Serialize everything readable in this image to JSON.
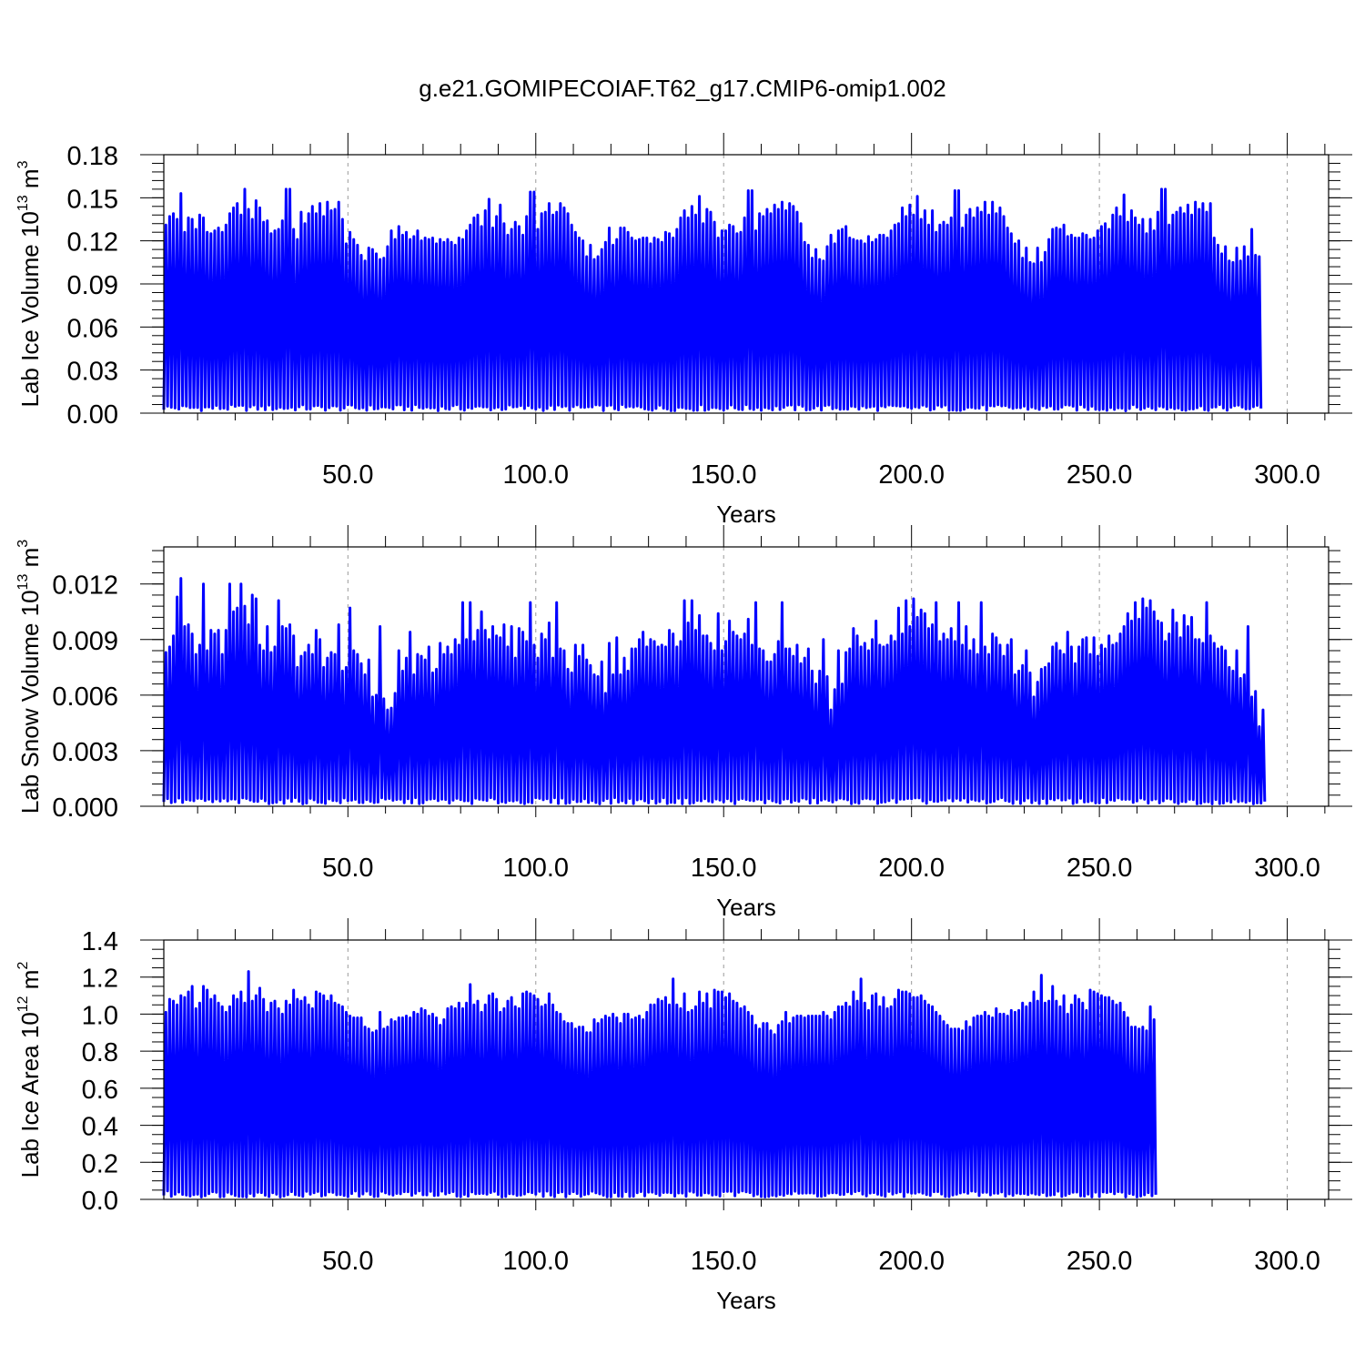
{
  "title": "g.e21.GOMIPECOIAF.T62_g17.CMIP6-omip1.002",
  "series_color": "#0000ff",
  "grid_color": "#9a9a9a",
  "chart_data": [
    {
      "type": "line",
      "name": "ice-volume",
      "ylabel": {
        "main": "Lab Ice Volume 10",
        "exp": "13",
        "unit": " m",
        "unit_exp": "3"
      },
      "xlabel": "Years",
      "xlim": [
        1,
        311
      ],
      "ylim": [
        0,
        0.18
      ],
      "x_ticks": [
        "50.0",
        "100.0",
        "150.0",
        "200.0",
        "250.0",
        "300.0"
      ],
      "x_tick_values": [
        50,
        100,
        150,
        200,
        250,
        300
      ],
      "y_ticks": [
        "0.00",
        "0.03",
        "0.06",
        "0.09",
        "0.12",
        "0.15",
        "0.18"
      ],
      "y_tick_values": [
        0,
        0.03,
        0.06,
        0.09,
        0.12,
        0.15,
        0.18
      ],
      "y_minor_step": 0.006,
      "annual_peaks": [
        0.131,
        0.137,
        0.139,
        0.135,
        0.153,
        0.126,
        0.136,
        0.135,
        0.128,
        0.138,
        0.136,
        0.126,
        0.125,
        0.127,
        0.129,
        0.126,
        0.131,
        0.139,
        0.143,
        0.146,
        0.138,
        0.156,
        0.142,
        0.135,
        0.148,
        0.143,
        0.133,
        0.134,
        0.125,
        0.127,
        0.128,
        0.134,
        0.156,
        0.156,
        0.128,
        0.121,
        0.14,
        0.132,
        0.139,
        0.144,
        0.139,
        0.146,
        0.137,
        0.147,
        0.141,
        0.142,
        0.147,
        0.135,
        0.118,
        0.126,
        0.121,
        0.117,
        0.11,
        0.106,
        0.115,
        0.114,
        0.111,
        0.107,
        0.108,
        0.116,
        0.127,
        0.121,
        0.13,
        0.124,
        0.126,
        0.121,
        0.123,
        0.127,
        0.12,
        0.122,
        0.121,
        0.122,
        0.118,
        0.121,
        0.119,
        0.121,
        0.119,
        0.117,
        0.122,
        0.121,
        0.127,
        0.131,
        0.136,
        0.138,
        0.13,
        0.141,
        0.149,
        0.129,
        0.137,
        0.145,
        0.132,
        0.124,
        0.128,
        0.133,
        0.13,
        0.124,
        0.137,
        0.154,
        0.154,
        0.128,
        0.139,
        0.14,
        0.146,
        0.138,
        0.14,
        0.146,
        0.143,
        0.139,
        0.131,
        0.126,
        0.122,
        0.12,
        0.109,
        0.117,
        0.107,
        0.109,
        0.114,
        0.119,
        0.129,
        0.117,
        0.121,
        0.129,
        0.129,
        0.126,
        0.122,
        0.12,
        0.121,
        0.122,
        0.122,
        0.118,
        0.122,
        0.121,
        0.119,
        0.126,
        0.125,
        0.122,
        0.128,
        0.136,
        0.141,
        0.136,
        0.144,
        0.138,
        0.151,
        0.132,
        0.142,
        0.14,
        0.133,
        0.122,
        0.127,
        0.127,
        0.131,
        0.13,
        0.125,
        0.126,
        0.136,
        0.155,
        0.155,
        0.127,
        0.139,
        0.137,
        0.142,
        0.139,
        0.145,
        0.142,
        0.147,
        0.141,
        0.146,
        0.144,
        0.14,
        0.132,
        0.119,
        0.117,
        0.108,
        0.114,
        0.107,
        0.106,
        0.116,
        0.124,
        0.118,
        0.127,
        0.128,
        0.13,
        0.122,
        0.121,
        0.12,
        0.12,
        0.118,
        0.123,
        0.119,
        0.121,
        0.124,
        0.124,
        0.122,
        0.127,
        0.131,
        0.132,
        0.143,
        0.137,
        0.145,
        0.138,
        0.151,
        0.135,
        0.141,
        0.131,
        0.141,
        0.126,
        0.131,
        0.133,
        0.131,
        0.136,
        0.155,
        0.155,
        0.129,
        0.138,
        0.142,
        0.136,
        0.143,
        0.14,
        0.147,
        0.138,
        0.147,
        0.139,
        0.143,
        0.137,
        0.129,
        0.125,
        0.118,
        0.12,
        0.108,
        0.115,
        0.105,
        0.104,
        0.115,
        0.105,
        0.112,
        0.121,
        0.128,
        0.129,
        0.128,
        0.131,
        0.123,
        0.124,
        0.122,
        0.122,
        0.125,
        0.124,
        0.121,
        0.122,
        0.127,
        0.13,
        0.132,
        0.128,
        0.138,
        0.143,
        0.137,
        0.152,
        0.133,
        0.141,
        0.136,
        0.131,
        0.135,
        0.125,
        0.135,
        0.127,
        0.14,
        0.156,
        0.156,
        0.131,
        0.138,
        0.14,
        0.143,
        0.139,
        0.145,
        0.138,
        0.147,
        0.142,
        0.146,
        0.14,
        0.146,
        0.122,
        0.117,
        0.111,
        0.116,
        0.106,
        0.105,
        0.115,
        0.106,
        0.116,
        0.109,
        0.128,
        0.11,
        0.109
      ]
    },
    {
      "type": "line",
      "name": "snow-volume",
      "ylabel": {
        "main": "Lab Snow Volume 10",
        "exp": "13",
        "unit": " m",
        "unit_exp": "3"
      },
      "xlabel": "Years",
      "xlim": [
        1,
        311
      ],
      "ylim": [
        0,
        0.014
      ],
      "x_ticks": [
        "50.0",
        "100.0",
        "150.0",
        "200.0",
        "250.0",
        "300.0"
      ],
      "x_tick_values": [
        50,
        100,
        150,
        200,
        250,
        300
      ],
      "y_ticks": [
        "0.000",
        "0.003",
        "0.006",
        "0.009",
        "0.012"
      ],
      "y_tick_values": [
        0,
        0.003,
        0.006,
        0.009,
        0.012
      ],
      "y_minor_step": 0.0006,
      "annual_peaks": [
        0.0083,
        0.0086,
        0.0092,
        0.0113,
        0.0123,
        0.0097,
        0.0098,
        0.0093,
        0.0082,
        0.0087,
        0.012,
        0.0084,
        0.0095,
        0.0093,
        0.0095,
        0.0082,
        0.0095,
        0.012,
        0.0105,
        0.0107,
        0.012,
        0.0108,
        0.0098,
        0.0114,
        0.0112,
        0.0087,
        0.0084,
        0.0097,
        0.0083,
        0.0086,
        0.0111,
        0.0097,
        0.0096,
        0.0098,
        0.0092,
        0.0075,
        0.0081,
        0.0083,
        0.0087,
        0.0082,
        0.0095,
        0.009,
        0.0075,
        0.008,
        0.0083,
        0.0082,
        0.0098,
        0.0073,
        0.0075,
        0.0107,
        0.0084,
        0.0082,
        0.0077,
        0.0071,
        0.0079,
        0.0059,
        0.006,
        0.0097,
        0.0058,
        0.0052,
        0.0053,
        0.0061,
        0.0084,
        0.0073,
        0.008,
        0.0094,
        0.0071,
        0.0082,
        0.0081,
        0.0079,
        0.0086,
        0.0072,
        0.0074,
        0.0088,
        0.0082,
        0.0086,
        0.0082,
        0.009,
        0.0087,
        0.011,
        0.009,
        0.011,
        0.0089,
        0.0095,
        0.0105,
        0.0095,
        0.009,
        0.0097,
        0.0092,
        0.0091,
        0.0098,
        0.0086,
        0.0097,
        0.008,
        0.0096,
        0.0094,
        0.0089,
        0.011,
        0.0087,
        0.008,
        0.0093,
        0.009,
        0.0099,
        0.008,
        0.011,
        0.0085,
        0.0084,
        0.0074,
        0.0072,
        0.0087,
        0.0081,
        0.0087,
        0.0079,
        0.0076,
        0.0071,
        0.007,
        0.0078,
        0.0061,
        0.0088,
        0.0071,
        0.0091,
        0.0071,
        0.008,
        0.0073,
        0.0085,
        0.0085,
        0.009,
        0.0094,
        0.0086,
        0.009,
        0.0089,
        0.0086,
        0.0087,
        0.0086,
        0.0095,
        0.0093,
        0.0086,
        0.0089,
        0.0111,
        0.0099,
        0.0111,
        0.0095,
        0.0103,
        0.0092,
        0.0092,
        0.0088,
        0.0084,
        0.0104,
        0.0084,
        0.0089,
        0.01,
        0.0094,
        0.0092,
        0.009,
        0.0093,
        0.0101,
        0.0087,
        0.011,
        0.0085,
        0.0084,
        0.0078,
        0.0078,
        0.0082,
        0.0089,
        0.011,
        0.0085,
        0.0085,
        0.0081,
        0.0087,
        0.0077,
        0.008,
        0.0085,
        0.0073,
        0.0066,
        0.0073,
        0.009,
        0.007,
        0.0052,
        0.0063,
        0.0084,
        0.0066,
        0.0083,
        0.0085,
        0.0096,
        0.0092,
        0.0086,
        0.0088,
        0.0084,
        0.009,
        0.01,
        0.0087,
        0.0086,
        0.0087,
        0.0092,
        0.0089,
        0.0107,
        0.0093,
        0.0111,
        0.0097,
        0.0112,
        0.0102,
        0.0106,
        0.0104,
        0.0096,
        0.0098,
        0.011,
        0.0089,
        0.0093,
        0.009,
        0.0096,
        0.0089,
        0.011,
        0.0087,
        0.0097,
        0.0084,
        0.009,
        0.0082,
        0.011,
        0.0086,
        0.0082,
        0.0093,
        0.0091,
        0.0087,
        0.0081,
        0.0087,
        0.009,
        0.0071,
        0.0073,
        0.0076,
        0.0084,
        0.0072,
        0.0059,
        0.0067,
        0.0074,
        0.0075,
        0.0077,
        0.0086,
        0.0088,
        0.0084,
        0.0082,
        0.0094,
        0.0086,
        0.0077,
        0.0086,
        0.009,
        0.0091,
        0.0082,
        0.0091,
        0.0081,
        0.0087,
        0.0085,
        0.0092,
        0.0087,
        0.0088,
        0.0093,
        0.0097,
        0.0104,
        0.01,
        0.011,
        0.0101,
        0.0112,
        0.0107,
        0.0111,
        0.0105,
        0.01,
        0.0099,
        0.0089,
        0.0093,
        0.0106,
        0.0099,
        0.0091,
        0.0103,
        0.0097,
        0.0102,
        0.009,
        0.009,
        0.0088,
        0.011,
        0.0092,
        0.0088,
        0.0085,
        0.0086,
        0.0084,
        0.0075,
        0.0073,
        0.0084,
        0.0069,
        0.0071,
        0.0097,
        0.0059,
        0.0062,
        0.0043,
        0.0052
      ]
    },
    {
      "type": "line",
      "name": "ice-area",
      "ylabel": {
        "main": "Lab Ice Area 10",
        "exp": "12",
        "unit": " m",
        "unit_exp": "2"
      },
      "xlabel": "Years",
      "xlim": [
        1,
        311
      ],
      "ylim": [
        0,
        1.4
      ],
      "x_ticks": [
        "50.0",
        "100.0",
        "150.0",
        "200.0",
        "250.0",
        "300.0"
      ],
      "x_tick_values": [
        50,
        100,
        150,
        200,
        250,
        300
      ],
      "y_ticks": [
        "0.0",
        "0.2",
        "0.4",
        "0.6",
        "0.8",
        "1.0",
        "1.2",
        "1.4"
      ],
      "y_tick_values": [
        0,
        0.2,
        0.4,
        0.6,
        0.8,
        1.0,
        1.2,
        1.4
      ],
      "y_minor_step": 0.05,
      "annual_peaks": [
        1.01,
        1.08,
        1.07,
        1.05,
        1.1,
        1.09,
        1.12,
        1.15,
        1.03,
        1.06,
        1.15,
        1.13,
        1.08,
        1.1,
        1.06,
        1.04,
        1.01,
        1.04,
        1.1,
        1.08,
        1.12,
        1.06,
        1.23,
        1.07,
        1.1,
        1.14,
        1.08,
        1.01,
        1.06,
        1.07,
        1.03,
        1.0,
        1.07,
        1.05,
        1.13,
        1.08,
        1.07,
        1.09,
        1.05,
        1.03,
        1.12,
        1.11,
        1.1,
        1.07,
        1.1,
        1.06,
        1.05,
        1.04,
        1.01,
        0.99,
        0.98,
        0.98,
        0.98,
        0.93,
        0.92,
        0.9,
        0.91,
        1.01,
        0.92,
        0.93,
        0.97,
        0.96,
        0.98,
        0.98,
        0.99,
        0.98,
        1.01,
        1.0,
        1.03,
        1.02,
        0.99,
        1.0,
        0.98,
        0.94,
        0.97,
        1.03,
        1.04,
        1.03,
        1.06,
        1.03,
        1.06,
        1.16,
        1.05,
        1.07,
        1.01,
        1.05,
        1.1,
        1.11,
        1.08,
        1.01,
        1.03,
        1.07,
        1.09,
        1.04,
        1.03,
        1.11,
        1.12,
        1.11,
        1.1,
        1.08,
        1.04,
        1.05,
        1.11,
        1.05,
        1.01,
        1.0,
        0.96,
        0.95,
        0.95,
        0.92,
        0.93,
        0.93,
        0.9,
        0.9,
        0.97,
        0.95,
        0.97,
        0.99,
        0.98,
        1.0,
        0.98,
        0.95,
        1.0,
        1.0,
        0.97,
        0.98,
        0.99,
        0.97,
        1.01,
        1.05,
        1.05,
        1.08,
        1.07,
        1.09,
        1.05,
        1.19,
        1.05,
        1.03,
        1.11,
        1.01,
        1.02,
        1.04,
        1.12,
        1.06,
        1.11,
        1.03,
        1.13,
        1.12,
        1.12,
        1.09,
        1.11,
        1.07,
        1.06,
        1.03,
        1.04,
        1.01,
        0.99,
        0.94,
        0.92,
        0.95,
        0.95,
        0.91,
        0.89,
        0.94,
        0.96,
        1.01,
        0.95,
        0.98,
        0.99,
        0.99,
        0.98,
        0.99,
        0.99,
        0.99,
        0.99,
        1.01,
        0.99,
        0.97,
        1.01,
        1.04,
        1.04,
        1.06,
        1.04,
        1.12,
        1.07,
        1.19,
        1.06,
        1.02,
        1.1,
        1.11,
        1.04,
        1.09,
        1.03,
        1.04,
        1.08,
        1.13,
        1.12,
        1.12,
        1.11,
        1.09,
        1.09,
        1.1,
        1.07,
        1.05,
        1.04,
        1.01,
        0.99,
        0.96,
        0.94,
        0.92,
        0.92,
        0.92,
        0.91,
        0.96,
        0.93,
        0.98,
        0.99,
        0.99,
        1.01,
        0.99,
        0.98,
        1.03,
        1.0,
        1.0,
        0.99,
        1.02,
        1.01,
        1.02,
        1.06,
        1.04,
        1.06,
        1.12,
        1.07,
        1.21,
        1.06,
        1.07,
        1.15,
        1.07,
        1.04,
        1.1,
        1.0,
        1.05,
        1.1,
        1.08,
        1.06,
        1.02,
        1.13,
        1.12,
        1.11,
        1.1,
        1.09,
        1.09,
        1.07,
        1.05,
        1.06,
        1.01,
        0.98,
        0.93,
        0.93,
        0.92,
        0.93,
        0.91,
        1.04,
        0.97
      ]
    }
  ]
}
